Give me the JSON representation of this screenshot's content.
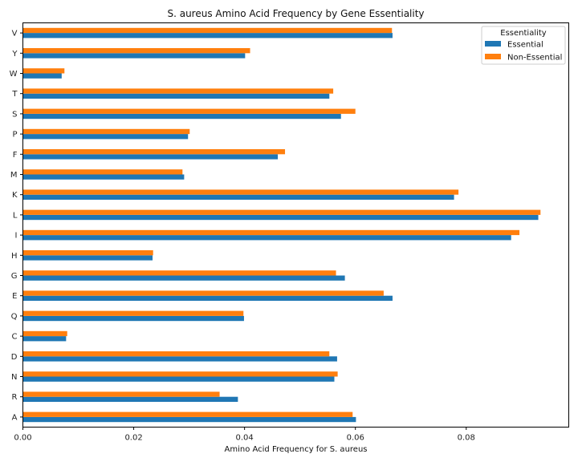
{
  "chart_data": {
    "type": "bar",
    "orientation": "horizontal",
    "title": "S. aureus Amino Acid Frequency by Gene Essentiality",
    "xlabel": "Amino Acid Frequency for S. aureus",
    "ylabel": "",
    "xlim": [
      0,
      0.0985
    ],
    "x_ticks": [
      0.0,
      0.02,
      0.04,
      0.06,
      0.08
    ],
    "x_tick_labels": [
      "0.00",
      "0.02",
      "0.04",
      "0.06",
      "0.08"
    ],
    "categories": [
      "A",
      "R",
      "N",
      "D",
      "C",
      "Q",
      "E",
      "G",
      "H",
      "I",
      "L",
      "K",
      "M",
      "F",
      "P",
      "S",
      "T",
      "W",
      "Y",
      "V"
    ],
    "series": [
      {
        "name": "Essential",
        "color": "#1f77b4",
        "values": [
          0.0601,
          0.0388,
          0.0562,
          0.0567,
          0.0078,
          0.0399,
          0.0667,
          0.0581,
          0.0234,
          0.0881,
          0.093,
          0.0778,
          0.0291,
          0.046,
          0.0298,
          0.0574,
          0.0553,
          0.007,
          0.0401,
          0.0667
        ]
      },
      {
        "name": "Non-Essential",
        "color": "#ff7f0e",
        "values": [
          0.0595,
          0.0355,
          0.0568,
          0.0553,
          0.008,
          0.0398,
          0.0651,
          0.0565,
          0.0235,
          0.0896,
          0.0934,
          0.0786,
          0.0288,
          0.0473,
          0.0301,
          0.06,
          0.056,
          0.0075,
          0.041,
          0.0666
        ]
      }
    ],
    "legend": {
      "title": "Essentiality",
      "placement": "top-right"
    },
    "grid": false
  }
}
